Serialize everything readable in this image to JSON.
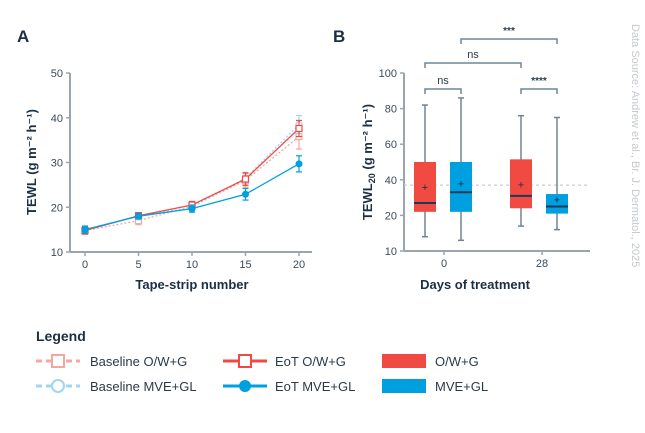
{
  "colors": {
    "red": "#f04a43",
    "blue": "#009fe0",
    "light_red": "#f4a6a1",
    "light_blue": "#9fd6f0",
    "navy": "#1b2f45",
    "axis": "#9aa5ad",
    "whisker": "#6f8593"
  },
  "source": "Data Source: Andrew et al., Br. J. Dermatol., 2025",
  "chart_data": [
    {
      "panel": "A",
      "type": "line",
      "xlabel": "Tape-strip number",
      "ylabel": "TEWL (g m⁻² h⁻¹)",
      "x": [
        0,
        5,
        10,
        15,
        20
      ],
      "xlim": [
        0,
        20
      ],
      "ylim": [
        10,
        50
      ],
      "yticks": [
        10,
        20,
        30,
        40,
        50
      ],
      "xticks": [
        0,
        5,
        10,
        15,
        20
      ],
      "grid": false,
      "series": [
        {
          "name": "Baseline O/W+G",
          "style": "dashed",
          "marker": "open-square",
          "color": "light_red",
          "values": [
            14.8,
            17.0,
            20.2,
            26.0,
            35.8
          ],
          "err": [
            0.8,
            0.9,
            0.9,
            1.5,
            2.8
          ]
        },
        {
          "name": "Baseline MVE+GL",
          "style": "dashed",
          "marker": "open-circle",
          "color": "light_blue",
          "values": [
            15.0,
            18.0,
            20.0,
            26.5,
            38.5
          ],
          "err": [
            0.8,
            0.8,
            0.9,
            1.3,
            2.0
          ]
        },
        {
          "name": "EoT O/W+G",
          "style": "solid",
          "marker": "open-square",
          "color": "red",
          "values": [
            14.8,
            18.1,
            20.5,
            26.3,
            37.6
          ],
          "err": [
            0.8,
            0.7,
            0.8,
            1.4,
            1.8
          ]
        },
        {
          "name": "EoT MVE+GL",
          "style": "solid",
          "marker": "filled-circle",
          "color": "blue",
          "values": [
            15.0,
            18.0,
            19.7,
            22.9,
            29.7
          ],
          "err": [
            0.8,
            0.6,
            0.8,
            1.3,
            1.8
          ]
        }
      ]
    },
    {
      "panel": "B",
      "type": "box",
      "xlabel": "Days of treatment",
      "ylabel_main": "TEWL",
      "ylabel_sub": "20",
      "ylabel_unit": " (g m⁻² h⁻¹)",
      "categories": [
        "0",
        "28"
      ],
      "yticks": [
        10,
        20,
        40,
        60,
        80,
        100
      ],
      "ylim": [
        10,
        100
      ],
      "reference_line": 37,
      "boxes": [
        {
          "day": "0",
          "group": "O/W+G",
          "color": "red",
          "min": 14,
          "q1": 22,
          "median": 27,
          "q3": 50,
          "max": 82,
          "mean": 36
        },
        {
          "day": "0",
          "group": "MVE+GL",
          "color": "blue",
          "min": 13,
          "q1": 22,
          "median": 33,
          "q3": 50,
          "max": 86,
          "mean": 38
        },
        {
          "day": "28",
          "group": "O/W+G",
          "color": "red",
          "min": 17,
          "q1": 24,
          "median": 31,
          "q3": 51.5,
          "max": 76,
          "mean": 37.5
        },
        {
          "day": "28",
          "group": "MVE+GL",
          "color": "blue",
          "min": 16,
          "q1": 21,
          "median": 25,
          "q3": 32,
          "max": 75,
          "mean": 29
        }
      ],
      "significance": [
        {
          "from": 0,
          "to": 1,
          "label": "ns",
          "level": 0
        },
        {
          "from": 2,
          "to": 3,
          "label": "****",
          "level": 0
        },
        {
          "from": 0,
          "to": 2,
          "label": "ns",
          "level": 1
        },
        {
          "from": 1,
          "to": 3,
          "label": "***",
          "level": 2
        }
      ]
    }
  ],
  "legend": {
    "title": "Legend",
    "items": [
      {
        "label": "Baseline O/W+G",
        "kind": "dashed-square",
        "color": "light_red"
      },
      {
        "label": "EoT O/W+G",
        "kind": "solid-square",
        "color": "red"
      },
      {
        "label": "O/W+G",
        "kind": "box",
        "color": "red"
      },
      {
        "label": "Baseline MVE+GL",
        "kind": "dashed-circle",
        "color": "light_blue"
      },
      {
        "label": "EoT MVE+GL",
        "kind": "solid-circle",
        "color": "blue"
      },
      {
        "label": "MVE+GL",
        "kind": "box",
        "color": "blue"
      }
    ]
  }
}
